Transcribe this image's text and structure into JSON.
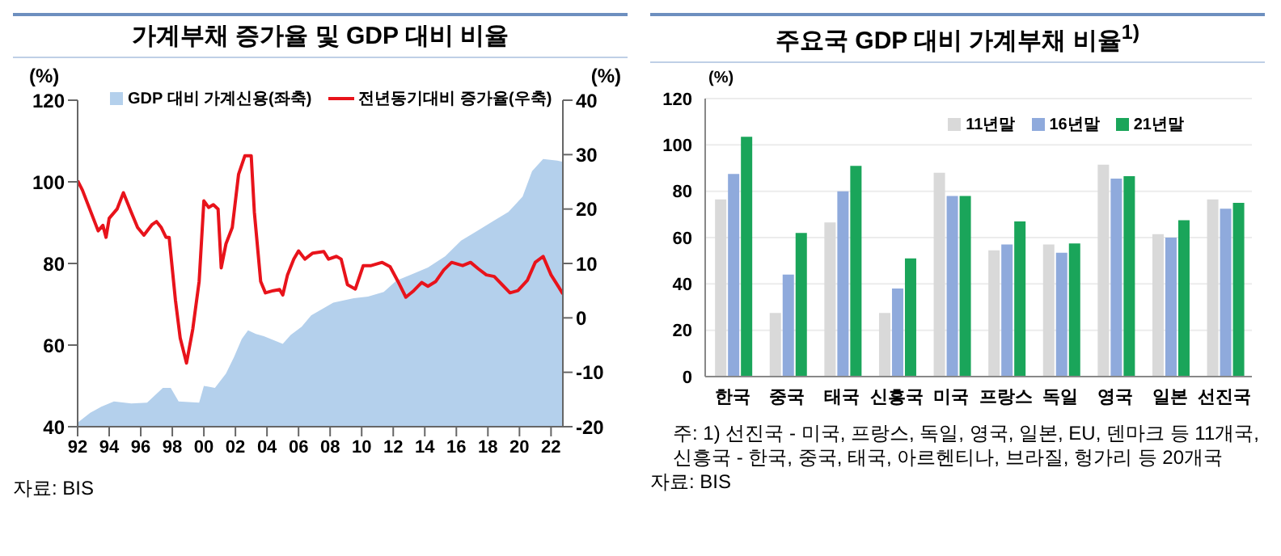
{
  "chart_data": [
    {
      "type": "area",
      "title": "가계부채 증가율 및 GDP 대비 비율",
      "ylabel": "(%)",
      "y2label": "(%)",
      "legend": "top",
      "xlim": [
        1992,
        2022.75
      ],
      "xticks": [
        {
          "value": 1992,
          "label": "92"
        },
        {
          "value": 1994,
          "label": "94"
        },
        {
          "value": 1996,
          "label": "96"
        },
        {
          "value": 1998,
          "label": "98"
        },
        {
          "value": 2000,
          "label": "00"
        },
        {
          "value": 2002,
          "label": "02"
        },
        {
          "value": 2004,
          "label": "04"
        },
        {
          "value": 2006,
          "label": "06"
        },
        {
          "value": 2008,
          "label": "08"
        },
        {
          "value": 2010,
          "label": "10"
        },
        {
          "value": 2012,
          "label": "12"
        },
        {
          "value": 2014,
          "label": "14"
        },
        {
          "value": 2016,
          "label": "16"
        },
        {
          "value": 2018,
          "label": "18"
        },
        {
          "value": 2020,
          "label": "20"
        },
        {
          "value": 2022,
          "label": "22"
        }
      ],
      "ylim": [
        40,
        120
      ],
      "yticks": [
        40,
        60,
        80,
        100,
        120
      ],
      "y2lim": [
        -20,
        40
      ],
      "y2ticks": [
        -20,
        -10,
        0,
        10,
        20,
        30,
        40
      ],
      "annotations": [
        "자료: BIS"
      ],
      "series": [
        {
          "name": "GDP 대비 가계신용(좌축)",
          "type": "area",
          "color": "#b4d0ec",
          "x": [
            1992,
            1992.8,
            1993.5,
            1994.3,
            1995.4,
            1996.4,
            1997.4,
            1997.9,
            1998.4,
            1999.7,
            2000,
            2000.7,
            2001.4,
            2001.9,
            2002.4,
            2002.8,
            2003.3,
            2003.8,
            2005,
            2005.5,
            2006.2,
            2006.8,
            2008.2,
            2009.5,
            2010.4,
            2011.4,
            2012.2,
            2013.2,
            2014.2,
            2015.3,
            2016.3,
            2017.3,
            2018.3,
            2019.3,
            2020.2,
            2020.8,
            2021.5,
            2022.4,
            2022.75
          ],
          "values": [
            41,
            43.4,
            44.9,
            46.2,
            45.7,
            45.9,
            49.5,
            49.5,
            46.2,
            45.9,
            50,
            49.5,
            53,
            57,
            61.5,
            63.6,
            62.7,
            62.2,
            60.3,
            62.5,
            64.5,
            67.3,
            70.4,
            71.5,
            71.9,
            73,
            75.8,
            77.4,
            79,
            81.8,
            85.6,
            87.9,
            90.3,
            92.6,
            96.4,
            102.6,
            105.6,
            105.2,
            104.9
          ]
        },
        {
          "name": "전년동기대비 증가율(우축)",
          "type": "line",
          "axis": "y2",
          "color": "#e8131b",
          "x": [
            1992,
            1992.3,
            1993.3,
            1993.6,
            1993.8,
            1994,
            1994.5,
            1994.9,
            1995.4,
            1995.8,
            1996.2,
            1996.7,
            1997,
            1997.3,
            1997.6,
            1997.8,
            1998.2,
            1998.5,
            1998.9,
            1999.3,
            1999.7,
            2000,
            2000.3,
            2000.6,
            2000.9,
            2001.1,
            2001.4,
            2001.8,
            2002.2,
            2002.6,
            2003,
            2003.2,
            2003.6,
            2003.9,
            2004.4,
            2004.8,
            2005,
            2005.3,
            2005.7,
            2006,
            2006.4,
            2006.9,
            2007.6,
            2007.9,
            2008.4,
            2008.7,
            2009.1,
            2009.6,
            2010.1,
            2010.6,
            2011.3,
            2011.8,
            2012.3,
            2012.8,
            2013.3,
            2013.8,
            2014.2,
            2014.7,
            2015.2,
            2015.7,
            2016.4,
            2016.9,
            2017.4,
            2017.9,
            2018.4,
            2018.9,
            2019.4,
            2019.9,
            2020.5,
            2021,
            2021.5,
            2022,
            2022.5,
            2022.75
          ],
          "values": [
            25.2,
            23.5,
            16,
            17,
            14.8,
            18.3,
            20,
            23,
            19.4,
            16.6,
            15.2,
            17.1,
            17.7,
            16.6,
            14.8,
            14.8,
            3.2,
            -3.7,
            -8.3,
            -2,
            6.7,
            21.5,
            20.3,
            20.8,
            20,
            9.2,
            13.6,
            16.6,
            26.4,
            29.8,
            29.8,
            19.4,
            6.7,
            4.6,
            5,
            5.2,
            4.2,
            7.9,
            10.8,
            12.3,
            10.8,
            11.9,
            12.2,
            10.8,
            11.3,
            10.8,
            6.1,
            5.3,
            9.6,
            9.6,
            10.2,
            9.4,
            6.7,
            3.8,
            5,
            6.5,
            5.8,
            6.7,
            8.8,
            10.2,
            9.6,
            10.2,
            9,
            7.9,
            7.6,
            6.1,
            4.6,
            5,
            6.9,
            10.2,
            11.3,
            7.9,
            5.6,
            4.4
          ]
        }
      ]
    },
    {
      "type": "bar",
      "title": "주요국 GDP 대비 가계부채 비율$^{1)}$",
      "ylabel": "(%)",
      "legend": "top right",
      "grid": "y",
      "ylim": [
        0,
        120
      ],
      "yticks": [
        0,
        20,
        40,
        60,
        80,
        100,
        120
      ],
      "categories": [
        "한국",
        "중국",
        "태국",
        "신흥국",
        "미국",
        "프랑스",
        "독일",
        "영국",
        "일본",
        "선진국"
      ],
      "annotations": [
        "주: 1) 선진국 - 미국, 프랑스, 독일, 영국, 일본, EU, 덴마크 등 11개국, 신흥국 - 한국, 중국, 태국, 아르헨티나, 브라질, 헝가리 등 20개국",
        "자료: BIS"
      ],
      "series": [
        {
          "name": "11년말",
          "color": "#d9d9d9",
          "values": [
            76.5,
            27.5,
            66.5,
            27.5,
            88,
            54.5,
            57,
            91.5,
            61.5,
            76.5
          ]
        },
        {
          "name": "16년말",
          "color": "#8faadc",
          "values": [
            87.5,
            44,
            80,
            38,
            78,
            57,
            53.5,
            85.5,
            60,
            72.5
          ]
        },
        {
          "name": "21년말",
          "color": "#1aa55a",
          "values": [
            103.5,
            62,
            91,
            51,
            78,
            67,
            57.5,
            86.5,
            67.5,
            75
          ]
        }
      ]
    }
  ]
}
